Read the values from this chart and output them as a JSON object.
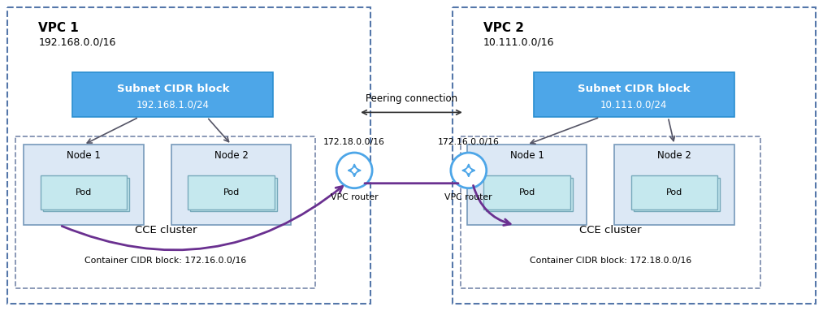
{
  "bg_color": "#ffffff",
  "vpc1_label": "VPC 1",
  "vpc1_cidr": "192.168.0.0/16",
  "vpc1_subnet_label": "Subnet CIDR block",
  "vpc1_subnet_cidr": "192.168.1.0/24",
  "vpc1_cce_label": "CCE cluster",
  "vpc1_cce_cidr": "Container CIDR block: 172.16.0.0/16",
  "vpc1_node1": "Node 1",
  "vpc1_node2": "Node 2",
  "vpc1_router_cidr": "172.18.0.0/16",
  "vpc1_router_label": "VPC router",
  "vpc2_label": "VPC 2",
  "vpc2_cidr": "10.111.0.0/16",
  "vpc2_subnet_label": "Subnet CIDR block",
  "vpc2_subnet_cidr": "10.111.0.0/24",
  "vpc2_cce_label": "CCE cluster",
  "vpc2_cce_cidr": "Container CIDR block: 172.18.0.0/16",
  "vpc2_node1": "Node 1",
  "vpc2_node2": "Node 2",
  "vpc2_router_cidr": "172.16.0.0/16",
  "vpc2_router_label": "VPC router",
  "peering_label": "Peering connection",
  "subnet_bg": "#4da6e8",
  "subnet_ec": "#2a8ed0",
  "node_bg": "#dce8f5",
  "node_ec": "#7799bb",
  "pod_bg": "#c5e8ee",
  "pod_ec": "#77aabb",
  "router_ec": "#4da6e8",
  "arrow_color": "#6a3090",
  "line_color": "#555566",
  "dashed_vpc_color": "#5577aa",
  "dashed_cce_color": "#7788aa"
}
